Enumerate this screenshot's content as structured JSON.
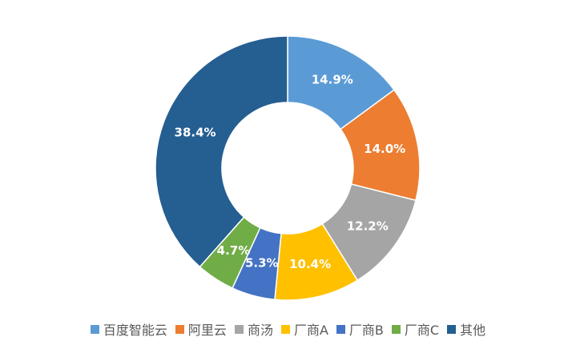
{
  "chart_data": {
    "type": "donut",
    "categories": [
      "百度智能云",
      "阿里云",
      "商汤",
      "厂商A",
      "厂商B",
      "厂商C",
      "其他"
    ],
    "values": [
      14.9,
      14.0,
      12.2,
      10.4,
      5.3,
      4.7,
      38.4
    ],
    "value_labels": [
      "14.9%",
      "14.0%",
      "12.2%",
      "10.4%",
      "5.3%",
      "4.7%",
      "38.4%"
    ],
    "colors": [
      "#5b9bd5",
      "#ed7d31",
      "#a5a5a5",
      "#ffc000",
      "#4472c4",
      "#70ad47",
      "#255e91"
    ],
    "legend": "bottom"
  }
}
